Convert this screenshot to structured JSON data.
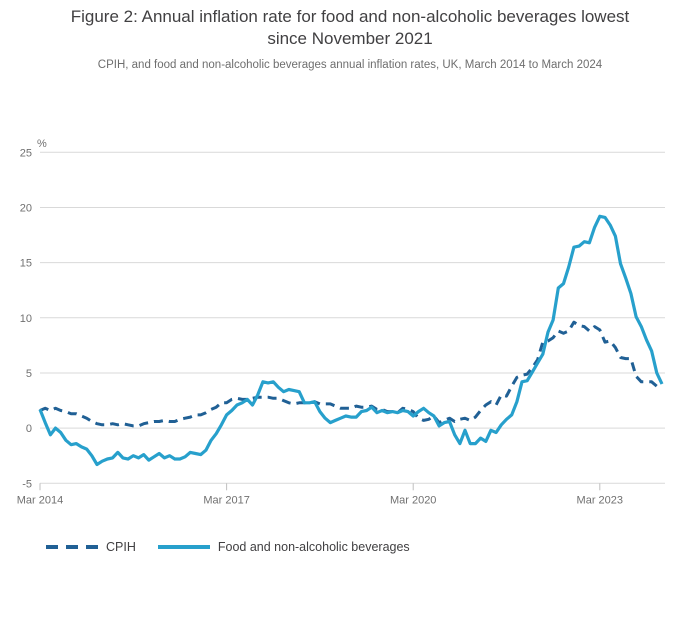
{
  "header": {
    "title_line1": "Figure 2: Annual inflation rate for food and non-alcoholic beverages lowest",
    "title_line2": "since November 2021",
    "subtitle": "CPIH, and food and non-alcoholic beverages annual inflation rates, UK, March 2014 to March 2024"
  },
  "chart_data": {
    "type": "line",
    "title": "Figure 2: Annual inflation rate for food and non-alcoholic beverages lowest since November 2021",
    "subtitle": "CPIH, and food and non-alcoholic beverages annual inflation rates, UK, March 2014 to March 2024",
    "unit_label": "%",
    "ylim": [
      -5,
      25
    ],
    "y_ticks": [
      25,
      20,
      15,
      10,
      5,
      0,
      -5
    ],
    "x_start": "Mar 2014",
    "x_end": "Mar 2024",
    "x_frequency": "monthly",
    "x_ticks": [
      {
        "label": "Mar 2014",
        "month_index": 0
      },
      {
        "label": "Mar 2017",
        "month_index": 36
      },
      {
        "label": "Mar 2020",
        "month_index": 72
      },
      {
        "label": "Mar 2023",
        "month_index": 108
      }
    ],
    "grid": true,
    "legend_position": "bottom",
    "colors": {
      "gridline": "#d9d9d9",
      "tick": "#bfbfbf",
      "axis_text": "#707070"
    },
    "series": [
      {
        "name": "CPIH",
        "style": "dashed",
        "color": "#206095",
        "values": [
          1.6,
          1.8,
          1.6,
          1.8,
          1.6,
          1.5,
          1.3,
          1.3,
          1.1,
          0.9,
          0.6,
          0.4,
          0.3,
          0.3,
          0.4,
          0.3,
          0.4,
          0.3,
          0.2,
          0.2,
          0.4,
          0.5,
          0.6,
          0.6,
          0.7,
          0.6,
          0.6,
          0.8,
          0.9,
          1.0,
          1.2,
          1.2,
          1.4,
          1.7,
          1.9,
          2.3,
          2.3,
          2.6,
          2.7,
          2.6,
          2.6,
          2.7,
          2.8,
          2.8,
          2.8,
          2.7,
          2.7,
          2.5,
          2.3,
          2.2,
          2.3,
          2.3,
          2.3,
          2.4,
          2.2,
          2.2,
          2.2,
          2.0,
          1.8,
          1.8,
          1.8,
          2.0,
          1.9,
          1.9,
          2.0,
          1.7,
          1.7,
          1.5,
          1.5,
          1.4,
          1.8,
          1.7,
          1.5,
          0.9,
          0.7,
          0.8,
          1.1,
          0.5,
          0.7,
          0.9,
          0.6,
          0.8,
          0.9,
          0.7,
          1.0,
          1.6,
          2.1,
          2.4,
          2.1,
          3.0,
          2.9,
          3.8,
          4.6,
          4.8,
          4.9,
          5.5,
          6.2,
          7.8,
          7.9,
          8.2,
          8.8,
          8.6,
          8.8,
          9.6,
          9.3,
          9.2,
          8.8,
          9.2,
          8.9,
          7.8,
          7.9,
          7.3,
          6.4,
          6.3,
          6.3,
          4.7,
          4.2,
          4.2,
          4.2,
          3.8,
          3.8
        ]
      },
      {
        "name": "Food and non-alcoholic beverages",
        "style": "solid",
        "color": "#27A0CC",
        "values": [
          1.7,
          0.5,
          -0.6,
          0.0,
          -0.4,
          -1.1,
          -1.5,
          -1.4,
          -1.7,
          -1.9,
          -2.5,
          -3.3,
          -3.0,
          -2.8,
          -2.7,
          -2.2,
          -2.7,
          -2.8,
          -2.5,
          -2.7,
          -2.4,
          -2.9,
          -2.6,
          -2.3,
          -2.7,
          -2.5,
          -2.8,
          -2.8,
          -2.6,
          -2.2,
          -2.3,
          -2.4,
          -2.0,
          -1.1,
          -0.5,
          0.3,
          1.2,
          1.6,
          2.1,
          2.3,
          2.6,
          2.1,
          3.0,
          4.2,
          4.1,
          4.2,
          3.7,
          3.3,
          3.5,
          3.4,
          3.3,
          2.3,
          2.3,
          2.4,
          1.5,
          0.9,
          0.5,
          0.7,
          0.9,
          1.1,
          1.0,
          1.0,
          1.5,
          1.6,
          1.9,
          1.4,
          1.6,
          1.4,
          1.5,
          1.4,
          1.6,
          1.5,
          1.1,
          1.5,
          1.8,
          1.4,
          1.1,
          0.2,
          0.5,
          0.6,
          -0.6,
          -1.4,
          -0.2,
          -1.4,
          -1.4,
          -0.9,
          -1.2,
          -0.2,
          -0.4,
          0.3,
          0.8,
          1.2,
          2.4,
          4.2,
          4.3,
          5.1,
          5.9,
          6.7,
          8.7,
          9.8,
          12.7,
          13.1,
          14.6,
          16.4,
          16.5,
          16.9,
          16.8,
          18.2,
          19.2,
          19.1,
          18.4,
          17.4,
          14.9,
          13.6,
          12.2,
          10.1,
          9.2,
          8.0,
          7.0,
          5.0,
          4.0
        ]
      }
    ]
  }
}
